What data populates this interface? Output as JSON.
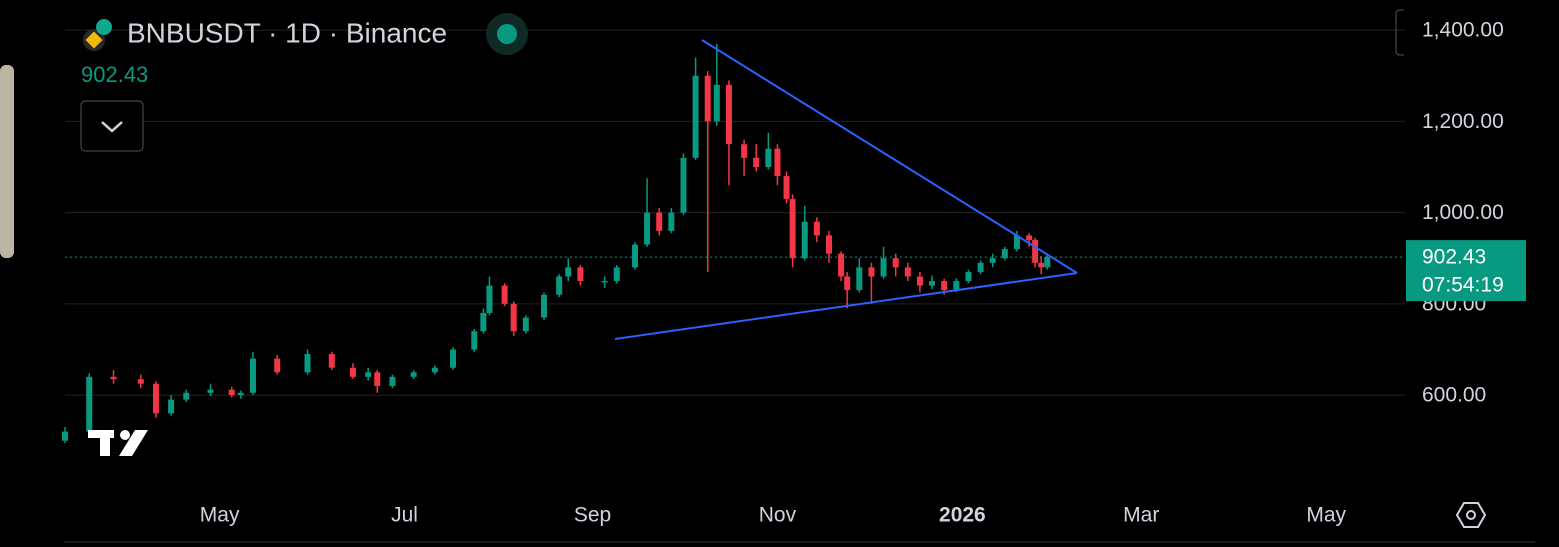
{
  "chart_data": {
    "type": "candlestick",
    "title": "BNBUSDT · 1D · Binance",
    "last_price": 902.43,
    "countdown": "07:54:19",
    "up_color": "#089981",
    "down_color": "#f23645",
    "x": [
      0,
      8,
      16,
      25,
      30,
      35,
      40,
      48,
      55,
      58,
      62,
      70,
      80,
      88,
      95,
      100,
      103,
      108,
      115,
      122,
      128,
      135,
      138,
      140,
      145,
      148,
      152,
      158,
      163,
      166,
      170,
      178,
      182,
      188,
      192,
      196,
      200,
      204,
      208,
      212,
      215,
      219,
      224,
      228,
      232,
      235,
      238,
      240,
      244,
      248,
      252,
      256,
      258,
      262,
      266,
      270,
      274,
      278,
      282,
      286,
      290,
      294,
      298,
      302,
      306,
      310,
      314,
      318,
      320,
      322,
      324
    ],
    "open": [
      500,
      520,
      640,
      635,
      625,
      560,
      590,
      605,
      612,
      600,
      605,
      680,
      650,
      690,
      660,
      640,
      650,
      620,
      640,
      650,
      660,
      700,
      740,
      780,
      840,
      800,
      740,
      770,
      820,
      860,
      880,
      850,
      850,
      880,
      930,
      1000,
      960,
      1000,
      1120,
      1300,
      1200,
      1280,
      1150,
      1120,
      1100,
      1140,
      1080,
      1030,
      900,
      980,
      950,
      910,
      860,
      830,
      880,
      860,
      900,
      880,
      860,
      840,
      850,
      830,
      850,
      870,
      890,
      900,
      920,
      950,
      940,
      890,
      880
    ],
    "high": [
      530,
      648,
      655,
      645,
      630,
      600,
      612,
      625,
      618,
      610,
      695,
      688,
      700,
      695,
      670,
      660,
      655,
      645,
      655,
      665,
      705,
      745,
      790,
      860,
      845,
      805,
      775,
      825,
      865,
      900,
      885,
      860,
      885,
      935,
      1075,
      1010,
      1010,
      1130,
      1340,
      1310,
      1370,
      1290,
      1160,
      1150,
      1175,
      1150,
      1090,
      1040,
      1015,
      990,
      960,
      915,
      870,
      900,
      890,
      925,
      910,
      890,
      870,
      862,
      855,
      856,
      875,
      895,
      910,
      925,
      960,
      955,
      945,
      905,
      910
    ],
    "low": [
      495,
      515,
      625,
      615,
      550,
      555,
      585,
      598,
      595,
      592,
      600,
      645,
      645,
      655,
      635,
      632,
      605,
      615,
      635,
      645,
      655,
      695,
      735,
      775,
      795,
      730,
      735,
      765,
      815,
      850,
      840,
      835,
      845,
      875,
      925,
      950,
      955,
      995,
      1115,
      870,
      1190,
      1060,
      1080,
      1090,
      1095,
      1060,
      1020,
      880,
      895,
      935,
      890,
      850,
      790,
      825,
      800,
      855,
      860,
      850,
      825,
      832,
      820,
      825,
      845,
      865,
      880,
      895,
      915,
      925,
      880,
      865,
      875
    ],
    "close": [
      520,
      640,
      635,
      625,
      560,
      590,
      605,
      612,
      600,
      605,
      680,
      650,
      690,
      660,
      640,
      650,
      620,
      640,
      650,
      660,
      700,
      740,
      780,
      840,
      800,
      740,
      770,
      820,
      860,
      880,
      850,
      850,
      880,
      930,
      1000,
      960,
      1000,
      1120,
      1300,
      1200,
      1280,
      1150,
      1120,
      1100,
      1140,
      1080,
      1030,
      900,
      980,
      950,
      910,
      860,
      830,
      880,
      860,
      900,
      880,
      860,
      840,
      850,
      830,
      850,
      870,
      890,
      900,
      920,
      950,
      940,
      890,
      880,
      902.43
    ],
    "xlim": [
      0,
      442
    ],
    "xticks": [
      {
        "value": 51,
        "label": "May"
      },
      {
        "value": 112,
        "label": "Jul"
      },
      {
        "value": 174,
        "label": "Sep"
      },
      {
        "value": 235,
        "label": "Nov"
      },
      {
        "value": 296,
        "label": "2026"
      },
      {
        "value": 355,
        "label": "Mar"
      },
      {
        "value": 416,
        "label": "May"
      }
    ],
    "ylim": [
      392,
      1466
    ],
    "yticks": [
      {
        "value": 600,
        "label": "600.00"
      },
      {
        "value": 800,
        "label": "800.00"
      },
      {
        "value": 1000,
        "label": "1,000.00"
      },
      {
        "value": 1200,
        "label": "1,200.00"
      },
      {
        "value": 1400,
        "label": "1,400.00"
      }
    ],
    "grid": true
  }
}
